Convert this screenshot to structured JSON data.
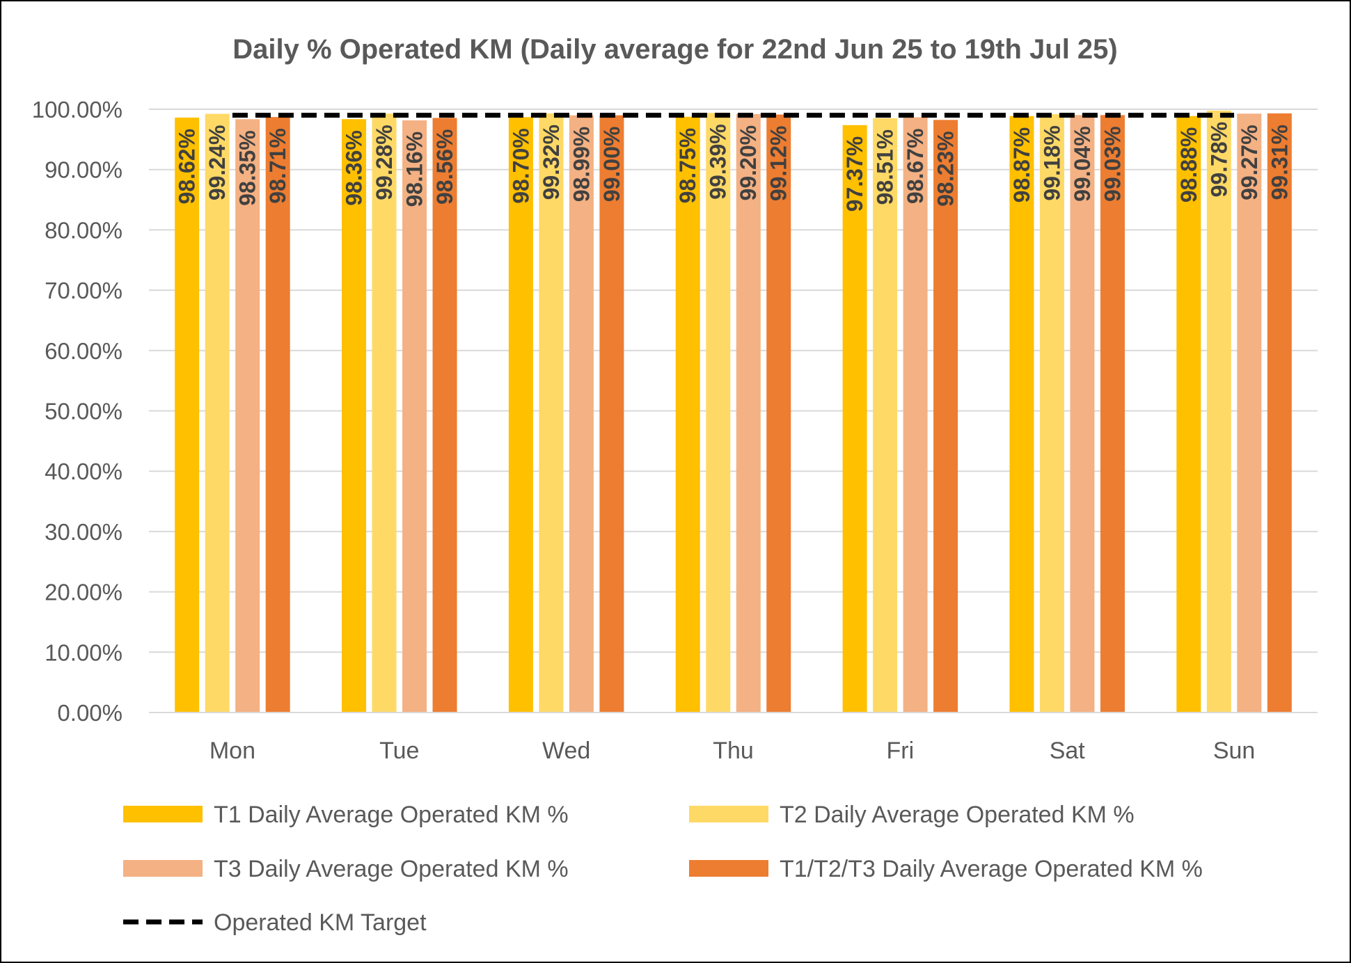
{
  "chart_data": {
    "type": "bar",
    "title": "Daily % Operated KM (Daily average for 22nd Jun 25 to 19th Jul 25)",
    "xlabel": "",
    "ylabel": "",
    "ylim": [
      0,
      100
    ],
    "grid": true,
    "legend_position": "bottom",
    "y_ticks": [
      "0.00%",
      "10.00%",
      "20.00%",
      "30.00%",
      "40.00%",
      "50.00%",
      "60.00%",
      "70.00%",
      "80.00%",
      "90.00%",
      "100.00%"
    ],
    "categories": [
      "Mon",
      "Tue",
      "Wed",
      "Thu",
      "Fri",
      "Sat",
      "Sun"
    ],
    "series": [
      {
        "name": "T1 Daily Average Operated KM %",
        "color": "#FFC000",
        "values": [
          98.62,
          98.36,
          98.7,
          98.75,
          97.37,
          98.87,
          98.88
        ],
        "labels": [
          "98.62%",
          "98.36%",
          "98.70%",
          "98.75%",
          "97.37%",
          "98.87%",
          "98.88%"
        ]
      },
      {
        "name": "T2 Daily Average Operated KM %",
        "color": "#FFD966",
        "values": [
          99.24,
          99.28,
          99.32,
          99.39,
          98.51,
          99.18,
          99.78
        ],
        "labels": [
          "99.24%",
          "99.28%",
          "99.32%",
          "99.39%",
          "98.51%",
          "99.18%",
          "99.78%"
        ]
      },
      {
        "name": "T3 Daily Average Operated KM %",
        "color": "#F4B183",
        "values": [
          98.35,
          98.16,
          98.99,
          99.2,
          98.67,
          99.04,
          99.27
        ],
        "labels": [
          "98.35%",
          "98.16%",
          "98.99%",
          "99.20%",
          "98.67%",
          "99.04%",
          "99.27%"
        ]
      },
      {
        "name": "T1/T2/T3 Daily Average Operated KM %",
        "color": "#ED7D31",
        "values": [
          98.71,
          98.56,
          99.0,
          99.12,
          98.23,
          99.03,
          99.31
        ],
        "labels": [
          "98.71%",
          "98.56%",
          "99.00%",
          "99.12%",
          "98.23%",
          "99.03%",
          "99.31%"
        ]
      }
    ],
    "target": {
      "name": "Operated KM Target",
      "value": 99,
      "color": "#000000",
      "style": "dashed"
    }
  }
}
